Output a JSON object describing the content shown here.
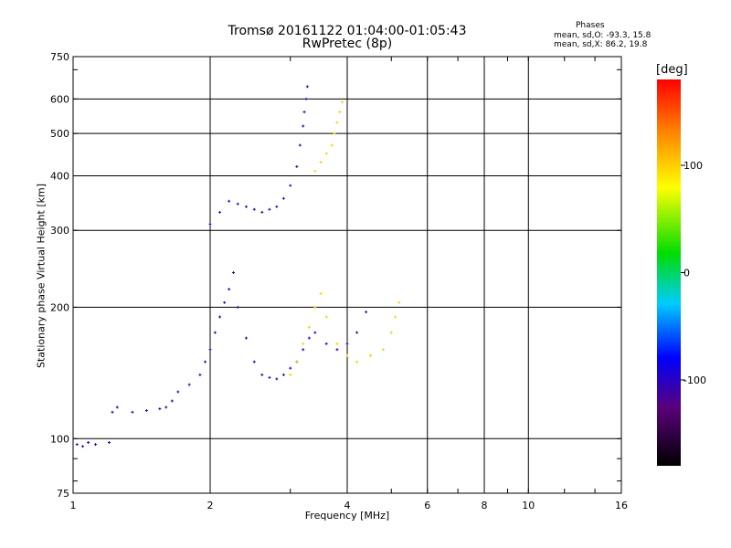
{
  "chart_data": {
    "type": "scatter",
    "title": "Tromsø 20161122 01:04:00-01:05:43",
    "subtitle": "RwPretec (8p)",
    "xlabel": "Frequency [MHz]",
    "ylabel": "Stationary phase Virtual Height [km]",
    "x_scale": "log",
    "y_scale": "log",
    "xlim": [
      1,
      16
    ],
    "ylim": [
      75,
      750
    ],
    "x_ticks": [
      "1",
      "2",
      "4",
      "6",
      "8",
      "10",
      "16"
    ],
    "y_ticks": [
      "75",
      "100",
      "200",
      "300",
      "400",
      "500",
      "600",
      "750"
    ],
    "grid": true,
    "phase_legend": {
      "heading": "Phases",
      "o_stats": "mean, sd,O:  -93.3, 15.8",
      "x_stats": "mean, sd,X:   86.2, 19.8"
    },
    "colorbar": {
      "label": "[deg]",
      "ticks": [
        "-100",
        "0",
        "100"
      ],
      "range": [
        -180,
        180
      ]
    },
    "series": [
      {
        "trace": "O-mode E/F1 region (blue)",
        "phase_deg": -100,
        "points": [
          [
            1.02,
            97
          ],
          [
            1.05,
            96
          ],
          [
            1.08,
            98
          ],
          [
            1.12,
            97
          ],
          [
            1.2,
            98
          ],
          [
            1.22,
            115
          ],
          [
            1.25,
            118
          ],
          [
            1.35,
            115
          ],
          [
            1.45,
            116
          ],
          [
            1.55,
            117
          ],
          [
            1.6,
            118
          ],
          [
            1.65,
            122
          ],
          [
            1.7,
            128
          ],
          [
            1.8,
            133
          ],
          [
            1.9,
            140
          ],
          [
            1.95,
            150
          ],
          [
            2.0,
            160
          ],
          [
            2.05,
            175
          ],
          [
            2.1,
            190
          ],
          [
            2.15,
            205
          ],
          [
            2.2,
            220
          ],
          [
            2.25,
            240
          ],
          [
            2.3,
            200
          ],
          [
            2.4,
            170
          ],
          [
            2.5,
            150
          ],
          [
            2.6,
            140
          ],
          [
            2.7,
            138
          ],
          [
            2.8,
            137
          ],
          [
            2.9,
            140
          ],
          [
            3.0,
            145
          ],
          [
            3.1,
            150
          ],
          [
            3.2,
            160
          ],
          [
            3.3,
            170
          ],
          [
            3.4,
            175
          ],
          [
            3.6,
            165
          ],
          [
            3.8,
            160
          ],
          [
            4.0,
            165
          ],
          [
            4.2,
            175
          ],
          [
            4.4,
            195
          ]
        ]
      },
      {
        "trace": "O-mode F2 region (blue)",
        "phase_deg": -100,
        "points": [
          [
            2.0,
            310
          ],
          [
            2.1,
            330
          ],
          [
            2.2,
            350
          ],
          [
            2.3,
            345
          ],
          [
            2.4,
            340
          ],
          [
            2.5,
            335
          ],
          [
            2.6,
            330
          ],
          [
            2.7,
            335
          ],
          [
            2.8,
            340
          ],
          [
            2.9,
            355
          ],
          [
            3.0,
            380
          ],
          [
            3.1,
            420
          ],
          [
            3.15,
            470
          ],
          [
            3.2,
            520
          ],
          [
            3.22,
            560
          ],
          [
            3.25,
            600
          ],
          [
            3.27,
            640
          ]
        ]
      },
      {
        "trace": "X-mode F1 region (yellow)",
        "phase_deg": 100,
        "points": [
          [
            3.0,
            140
          ],
          [
            3.1,
            150
          ],
          [
            3.2,
            165
          ],
          [
            3.3,
            180
          ],
          [
            3.4,
            200
          ],
          [
            3.5,
            215
          ],
          [
            3.6,
            190
          ],
          [
            3.8,
            165
          ],
          [
            4.0,
            155
          ],
          [
            4.2,
            150
          ],
          [
            4.5,
            155
          ],
          [
            4.8,
            160
          ],
          [
            5.0,
            175
          ],
          [
            5.1,
            190
          ],
          [
            5.2,
            205
          ]
        ]
      },
      {
        "trace": "X-mode F2 region (yellow)",
        "phase_deg": 100,
        "points": [
          [
            3.4,
            410
          ],
          [
            3.5,
            430
          ],
          [
            3.6,
            450
          ],
          [
            3.7,
            470
          ],
          [
            3.75,
            500
          ],
          [
            3.8,
            530
          ],
          [
            3.85,
            560
          ],
          [
            3.9,
            590
          ]
        ]
      }
    ]
  }
}
